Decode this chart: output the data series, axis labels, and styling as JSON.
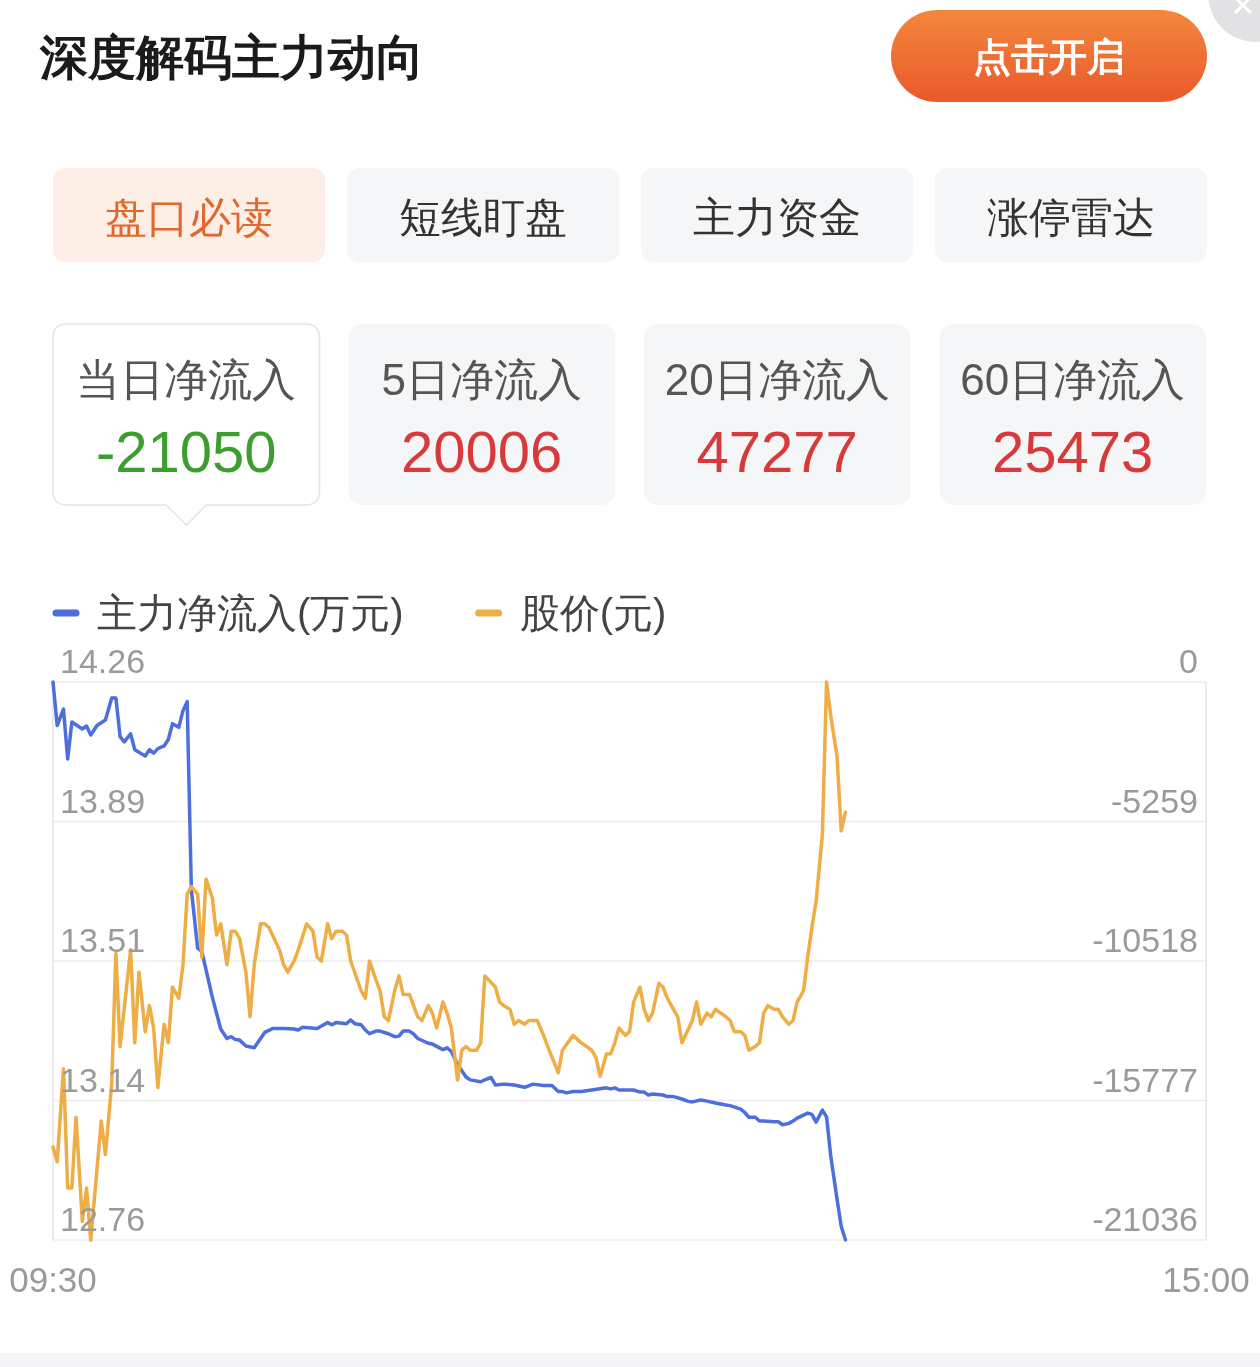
{
  "chart_data": [
    {
      "type": "other",
      "annotations": [
        "深度解码主力动向",
        "点击开启",
        "盘口必读",
        "短线盯盘",
        "主力资金",
        "涨停雷达"
      ],
      "categories": [
        "当日净流入",
        "5日净流入",
        "20日净流入",
        "60日净流入"
      ],
      "values": [
        -21050,
        20006,
        47277,
        25473
      ],
      "data_labels": true
    },
    {
      "type": "line",
      "xlim": [
        9.5,
        15
      ],
      "xticks": [
        {
          "value": 9.5,
          "label": "09:30"
        },
        {
          "value": 15,
          "label": "15:00"
        }
      ],
      "ylim": [
        12.76,
        14.26
      ],
      "yticks": [
        14.26,
        {
          "value": 13.885,
          "label": "13.89"
        },
        13.51,
        {
          "value": 13.135,
          "label": "13.14"
        },
        12.76
      ],
      "y2lim": [
        -21036,
        0
      ],
      "y2ticks": [
        0,
        -5259,
        -10518,
        -15777,
        -21036
      ],
      "grid": "y",
      "legend": "top left",
      "series": [
        {
          "name": "主力净流入(万元)",
          "color": "#4d6fdb",
          "axis": "y2",
          "x": [
            9.5,
            9.52,
            9.55,
            9.57,
            9.59,
            9.64,
            9.66,
            9.68,
            9.71,
            9.75,
            9.78,
            9.8,
            9.82,
            9.84,
            9.87,
            9.89,
            9.94,
            9.96,
            9.98,
            10.0,
            10.03,
            10.05,
            10.07,
            10.1,
            10.12,
            10.14,
            10.16,
            10.19,
            10.21,
            10.26,
            10.3,
            10.33,
            10.35,
            10.37,
            10.39,
            10.42,
            10.46,
            10.51,
            10.55,
            10.6,
            10.65,
            10.67,
            10.69,
            10.76,
            10.81,
            10.83,
            10.85,
            10.9,
            10.92,
            10.94,
            10.97,
            10.99,
            11.01,
            11.04,
            11.06,
            11.1,
            11.13,
            11.15,
            11.17,
            11.2,
            11.22,
            11.24,
            11.29,
            11.31,
            11.36,
            11.38,
            11.4,
            11.43,
            11.47,
            11.49,
            11.54,
            11.56,
            11.59,
            11.61,
            11.65,
            11.7,
            11.75,
            11.79,
            11.84,
            11.88,
            11.91,
            11.93,
            11.95,
            11.98,
            12.02,
            12.07,
            12.14,
            12.16,
            12.18,
            12.2,
            12.27,
            12.3,
            12.32,
            12.34,
            12.36,
            12.41,
            12.43,
            12.46,
            12.5,
            12.53,
            12.55,
            12.59,
            12.62,
            12.66,
            12.71,
            12.73,
            12.78,
            12.8,
            12.82,
            12.85,
            12.87,
            12.89,
            12.94,
            12.96,
            12.98,
            13.01,
            13.03,
            13.05,
            13.1,
            13.12,
            13.14,
            13.17,
            13.19,
            13.21,
            13.24,
            13.26,
            13.28
          ],
          "values": [
            0,
            -1640,
            -1020,
            -2900,
            -1510,
            -1770,
            -1660,
            -2000,
            -1640,
            -1430,
            -600,
            -600,
            -2060,
            -2260,
            -1950,
            -2550,
            -2790,
            -2550,
            -2680,
            -2510,
            -2410,
            -2170,
            -1570,
            -1710,
            -1080,
            -740,
            -7840,
            -10030,
            -10160,
            -11880,
            -13080,
            -13440,
            -13370,
            -13480,
            -13500,
            -13720,
            -13790,
            -13210,
            -13060,
            -13060,
            -13080,
            -13120,
            -13020,
            -13060,
            -12840,
            -12920,
            -12840,
            -12880,
            -12740,
            -12880,
            -12920,
            -13120,
            -13260,
            -13160,
            -13160,
            -13260,
            -13370,
            -13350,
            -13160,
            -13160,
            -13270,
            -13440,
            -13620,
            -13650,
            -13860,
            -13790,
            -13930,
            -14420,
            -14890,
            -15000,
            -15070,
            -15000,
            -14910,
            -15190,
            -15160,
            -15190,
            -15280,
            -15160,
            -15210,
            -15210,
            -15440,
            -15440,
            -15490,
            -15440,
            -15440,
            -15380,
            -15300,
            -15340,
            -15300,
            -15380,
            -15380,
            -15460,
            -15460,
            -15570,
            -15530,
            -15570,
            -15630,
            -15630,
            -15720,
            -15810,
            -15830,
            -15760,
            -15800,
            -15870,
            -15950,
            -15970,
            -16100,
            -16230,
            -16410,
            -16410,
            -16550,
            -16550,
            -16580,
            -16580,
            -16690,
            -16640,
            -16550,
            -16440,
            -16250,
            -16300,
            -16590,
            -16140,
            -16400,
            -17870,
            -19490,
            -20530,
            -21030
          ]
        },
        {
          "name": "股价(元)",
          "color": "#eead45",
          "x": [
            9.5,
            9.52,
            9.55,
            9.57,
            9.59,
            9.61,
            9.64,
            9.66,
            9.68,
            9.73,
            9.75,
            9.78,
            9.8,
            9.82,
            9.87,
            9.89,
            9.91,
            9.94,
            9.96,
            9.98,
            10.0,
            10.03,
            10.05,
            10.07,
            10.1,
            10.12,
            10.14,
            10.16,
            10.19,
            10.21,
            10.23,
            10.26,
            10.28,
            10.3,
            10.33,
            10.35,
            10.37,
            10.39,
            10.42,
            10.44,
            10.46,
            10.49,
            10.51,
            10.53,
            10.58,
            10.6,
            10.62,
            10.65,
            10.67,
            10.71,
            10.74,
            10.76,
            10.78,
            10.81,
            10.83,
            10.85,
            10.88,
            10.9,
            10.92,
            10.97,
            10.99,
            11.01,
            11.04,
            11.06,
            11.08,
            11.1,
            11.13,
            11.15,
            11.17,
            11.2,
            11.22,
            11.24,
            11.26,
            11.29,
            11.31,
            11.33,
            11.36,
            11.38,
            11.4,
            11.43,
            11.45,
            11.47,
            11.49,
            11.52,
            11.54,
            11.56,
            11.61,
            11.63,
            11.65,
            11.68,
            11.7,
            11.72,
            11.75,
            11.77,
            11.81,
            11.84,
            11.86,
            11.91,
            11.93,
            11.98,
            12.02,
            12.07,
            12.09,
            12.11,
            12.14,
            12.16,
            12.18,
            12.2,
            12.23,
            12.25,
            12.27,
            12.3,
            12.32,
            12.34,
            12.36,
            12.39,
            12.41,
            12.43,
            12.48,
            12.5,
            12.55,
            12.57,
            12.59,
            12.62,
            12.64,
            12.66,
            12.71,
            12.73,
            12.75,
            12.78,
            12.8,
            12.82,
            12.85,
            12.87,
            12.89,
            12.91,
            12.94,
            12.96,
            12.98,
            13.01,
            13.03,
            13.05,
            13.08,
            13.1,
            13.12,
            13.14,
            13.17,
            13.19,
            13.21,
            13.24,
            13.26,
            13.28
          ],
          "values": [
            13.01,
            12.97,
            13.22,
            12.9,
            12.9,
            13.09,
            12.81,
            12.9,
            12.76,
            13.08,
            12.99,
            13.18,
            13.53,
            13.28,
            13.54,
            13.29,
            13.48,
            13.32,
            13.39,
            13.33,
            13.17,
            13.34,
            13.29,
            13.44,
            13.41,
            13.5,
            13.69,
            13.71,
            13.69,
            13.52,
            13.73,
            13.68,
            13.58,
            13.61,
            13.5,
            13.59,
            13.59,
            13.57,
            13.48,
            13.36,
            13.5,
            13.61,
            13.61,
            13.6,
            13.54,
            13.5,
            13.48,
            13.51,
            13.54,
            13.61,
            13.59,
            13.52,
            13.51,
            13.61,
            13.57,
            13.59,
            13.59,
            13.58,
            13.51,
            13.43,
            13.41,
            13.51,
            13.46,
            13.43,
            13.36,
            13.35,
            13.43,
            13.47,
            13.42,
            13.42,
            13.39,
            13.36,
            13.35,
            13.39,
            13.37,
            13.33,
            13.4,
            13.37,
            13.33,
            13.19,
            13.27,
            13.28,
            13.27,
            13.27,
            13.29,
            13.47,
            13.44,
            13.4,
            13.39,
            13.38,
            13.34,
            13.35,
            13.34,
            13.35,
            13.35,
            13.31,
            13.28,
            13.21,
            13.27,
            13.31,
            13.29,
            13.27,
            13.25,
            13.2,
            13.26,
            13.26,
            13.29,
            13.33,
            13.31,
            13.32,
            13.4,
            13.44,
            13.38,
            13.35,
            13.37,
            13.45,
            13.44,
            13.41,
            13.36,
            13.29,
            13.35,
            13.4,
            13.34,
            13.37,
            13.36,
            13.38,
            13.36,
            13.35,
            13.32,
            13.32,
            13.31,
            13.27,
            13.28,
            13.29,
            13.37,
            13.39,
            13.38,
            13.38,
            13.36,
            13.34,
            13.35,
            13.4,
            13.43,
            13.52,
            13.6,
            13.67,
            13.85,
            14.26,
            14.17,
            14.06,
            13.86,
            13.91
          ]
        }
      ]
    }
  ]
}
